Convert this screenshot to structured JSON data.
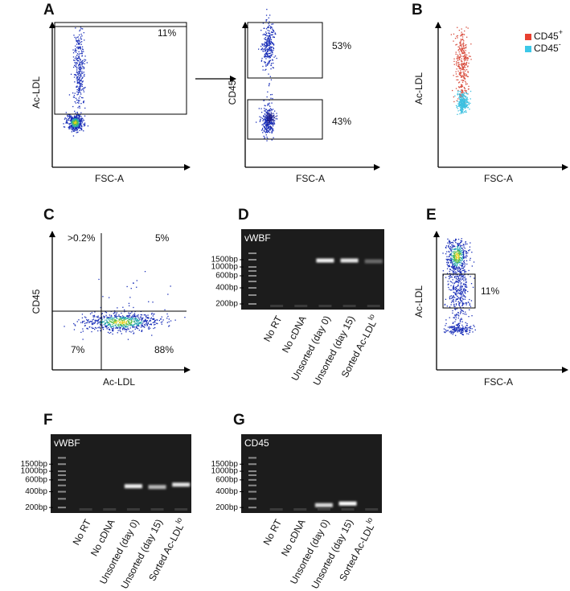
{
  "panel_a": {
    "letter": "A",
    "left_plot": {
      "y_label": "Ac-LDL",
      "x_label": "FSC-A",
      "gates": [
        "11%"
      ]
    },
    "right_plot": {
      "y_label": "CD45",
      "x_label": "FSC-A",
      "gates": [
        "53%",
        "43%"
      ]
    }
  },
  "panel_b": {
    "letter": "B",
    "y_label": "Ac-LDL",
    "x_label": "FSC-A",
    "legend": [
      {
        "text": "CD45",
        "sup": "+"
      },
      {
        "text": "CD45",
        "sup": "-"
      }
    ]
  },
  "panel_c": {
    "letter": "C",
    "y_label": "CD45",
    "x_label": "Ac-LDL",
    "quadrants": [
      ">0.2%",
      "5%",
      "7%",
      "88%"
    ]
  },
  "panel_d": {
    "letter": "D",
    "gel_title": "vWBF",
    "ladder": [
      "1500bp",
      "1000bp",
      "600bp",
      "400bp",
      "200bp"
    ],
    "lanes": [
      "No RT",
      "No cDNA",
      "Unsorted (day 0)",
      "Unsorted (day 15)",
      {
        "text": "Sorted Ac-LDL",
        "sup": "lo"
      }
    ]
  },
  "panel_e": {
    "letter": "E",
    "y_label": "Ac-LDL",
    "x_label": "FSC-A",
    "gates": [
      "11%"
    ]
  },
  "panel_f": {
    "letter": "F",
    "gel_title": "vWBF",
    "ladder": [
      "1500bp",
      "1000bp",
      "600bp",
      "400bp",
      "200bp"
    ],
    "lanes": [
      "No RT",
      "No cDNA",
      "Unsorted (day 0)",
      "Unsorted (day 15)",
      {
        "text": "Sorted Ac-LDL",
        "sup": "lo"
      }
    ]
  },
  "panel_g": {
    "letter": "G",
    "gel_title": "CD45",
    "ladder": [
      "1500bp",
      "1000bp",
      "600bp",
      "400bp",
      "200bp"
    ],
    "lanes": [
      "No RT",
      "No cDNA",
      "Unsorted (day 0)",
      "Unsorted (day 15)",
      {
        "text": "Sorted Ac-LDL",
        "sup": "lo"
      }
    ]
  }
}
